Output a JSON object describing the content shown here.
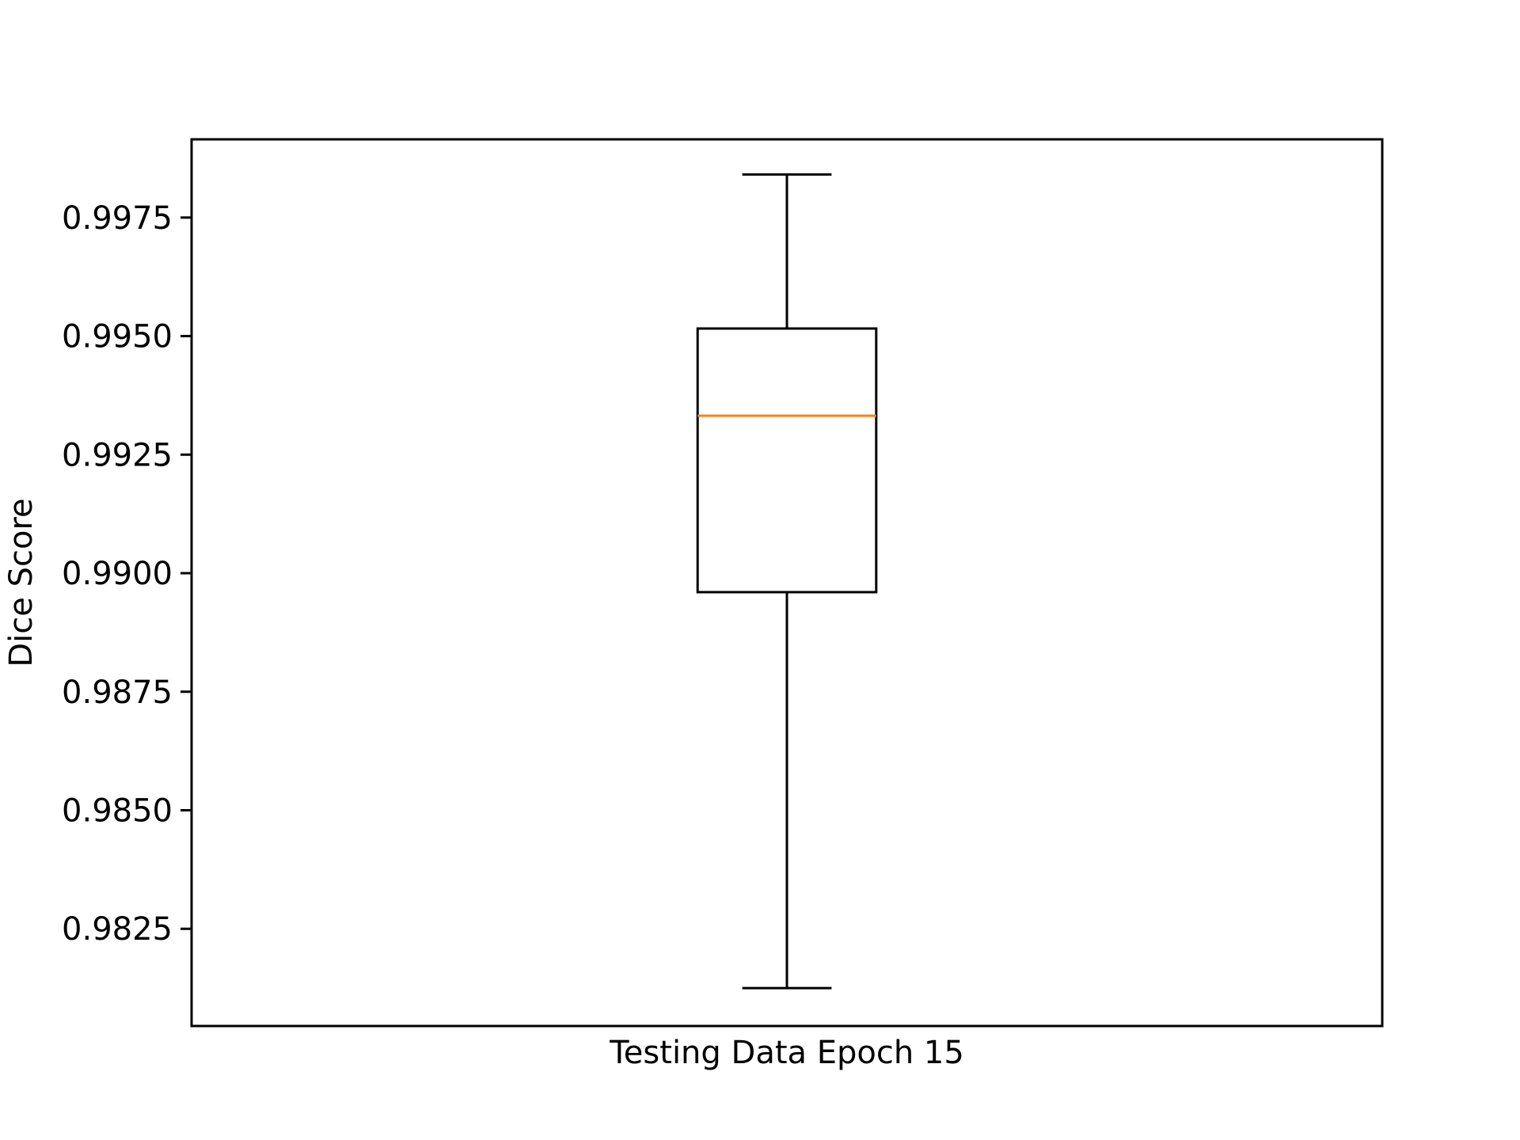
{
  "chart_data": {
    "type": "box",
    "title": "",
    "xlabel": "",
    "ylabel": "Dice Score",
    "categories": [
      "Testing Data Epoch 15"
    ],
    "ylim": [
      0.98045,
      0.99915
    ],
    "yticks": [
      0.9825,
      0.985,
      0.9875,
      0.99,
      0.9925,
      0.995,
      0.9975
    ],
    "ytick_labels": [
      "0.9825",
      "0.9850",
      "0.9875",
      "0.9900",
      "0.9925",
      "0.9950",
      "0.9975"
    ],
    "grid": false,
    "legend": "none",
    "boxes": [
      {
        "category": "Testing Data Epoch 15",
        "whisker_low": 0.98125,
        "q1": 0.9896,
        "median": 0.99332,
        "q3": 0.99516,
        "whisker_high": 0.99841
      }
    ],
    "colors": {
      "box": "#000000",
      "median": "#ff7f0e"
    }
  }
}
